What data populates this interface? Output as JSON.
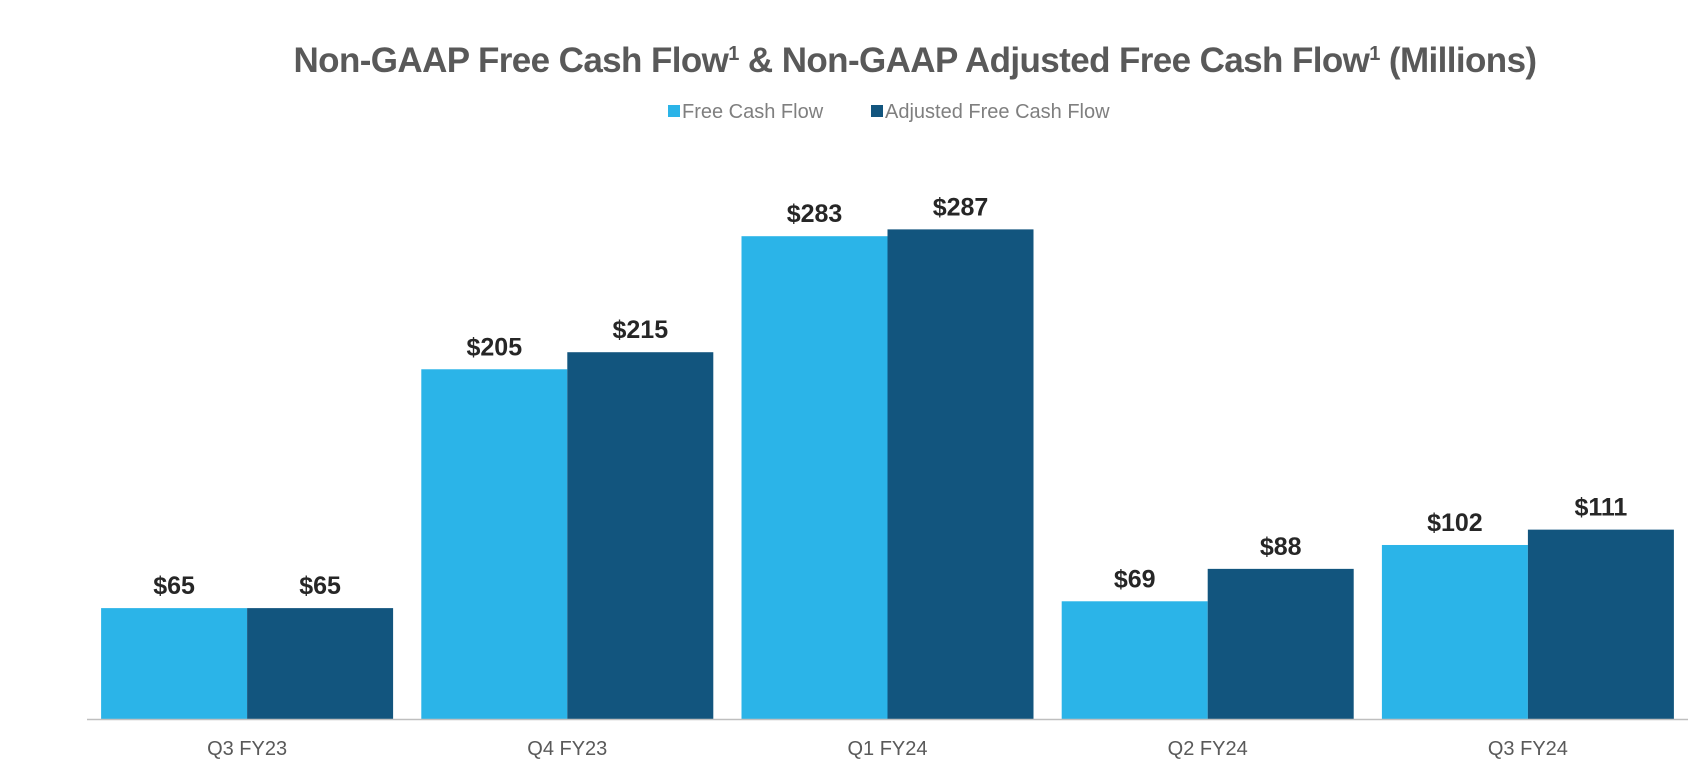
{
  "chart_data": {
    "type": "bar",
    "title": {
      "part1": "Non-GAAP Free Cash Flow",
      "sup1": "1",
      "part2": " & Non-GAAP Adjusted Free Cash Flow",
      "sup2": "1",
      "part3": " (Millions)"
    },
    "xlabel": "",
    "ylabel": "",
    "ylim": [
      0,
      300
    ],
    "grid": false,
    "legend_position": "top-center",
    "categories": [
      "Q3 FY23",
      "Q4 FY23",
      "Q1 FY24",
      "Q2 FY24",
      "Q3 FY24"
    ],
    "series": [
      {
        "name": "Free Cash Flow",
        "color": "#2bb4e8",
        "values": [
          65,
          205,
          283,
          69,
          102
        ],
        "labels": [
          "$65",
          "$205",
          "$283",
          "$69",
          "$102"
        ]
      },
      {
        "name": "Adjusted Free Cash Flow",
        "color": "#12557e",
        "values": [
          65,
          215,
          287,
          88,
          111
        ],
        "labels": [
          "$65",
          "$215",
          "$287",
          "$88",
          "$111"
        ]
      }
    ],
    "axis_color": "#bfbfbf"
  }
}
